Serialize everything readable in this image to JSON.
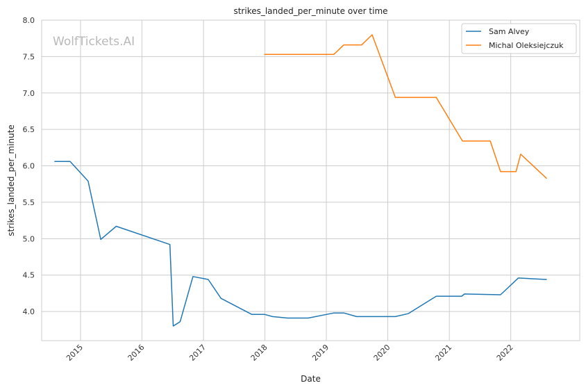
{
  "chart_data": {
    "type": "line",
    "title": "strikes_landed_per_minute over time",
    "xlabel": "Date",
    "ylabel": "strikes_landed_per_minute",
    "watermark": "WolfTickets.AI",
    "xlim": [
      "2014-05-15",
      "2023-02-15"
    ],
    "ylim": [
      3.6,
      8.0
    ],
    "x_ticks": [
      "2015",
      "2016",
      "2017",
      "2018",
      "2019",
      "2020",
      "2021",
      "2022"
    ],
    "y_ticks": [
      "4.0",
      "4.5",
      "5.0",
      "5.5",
      "6.0",
      "6.5",
      "7.0",
      "7.5",
      "8.0"
    ],
    "grid": true,
    "legend_position": "top-right",
    "series": [
      {
        "name": "Sam Alvey",
        "color": "#1f77b4",
        "x": [
          "2014-08-01",
          "2014-10-31",
          "2015-02-15",
          "2015-05-01",
          "2015-08-01",
          "2016-06-15",
          "2016-07-05",
          "2016-08-15",
          "2016-10-30",
          "2017-01-29",
          "2017-04-15",
          "2017-10-15",
          "2017-12-30",
          "2018-02-15",
          "2018-05-15",
          "2018-09-15",
          "2019-02-15",
          "2019-04-15",
          "2019-06-30",
          "2020-02-15",
          "2020-05-01",
          "2020-10-15",
          "2021-03-15",
          "2021-04-01",
          "2021-11-01",
          "2022-02-15",
          "2022-08-01"
        ],
        "y": [
          6.06,
          6.06,
          5.79,
          4.99,
          5.17,
          4.92,
          3.8,
          3.86,
          4.48,
          4.44,
          4.18,
          3.96,
          3.96,
          3.93,
          3.91,
          3.91,
          3.98,
          3.98,
          3.93,
          3.93,
          3.97,
          4.21,
          4.21,
          4.24,
          4.23,
          4.46,
          4.44
        ]
      },
      {
        "name": "Michal Oleksiejczuk",
        "color": "#ff7f0e",
        "x": [
          "2017-12-30",
          "2019-02-15",
          "2019-04-15",
          "2019-07-30",
          "2019-09-30",
          "2020-02-15",
          "2020-10-15",
          "2021-03-20",
          "2021-09-01",
          "2021-11-01",
          "2022-02-01",
          "2022-03-01",
          "2022-08-01"
        ],
        "y": [
          7.53,
          7.53,
          7.66,
          7.66,
          7.8,
          6.94,
          6.94,
          6.34,
          6.34,
          5.92,
          5.92,
          6.16,
          5.83
        ]
      }
    ]
  }
}
